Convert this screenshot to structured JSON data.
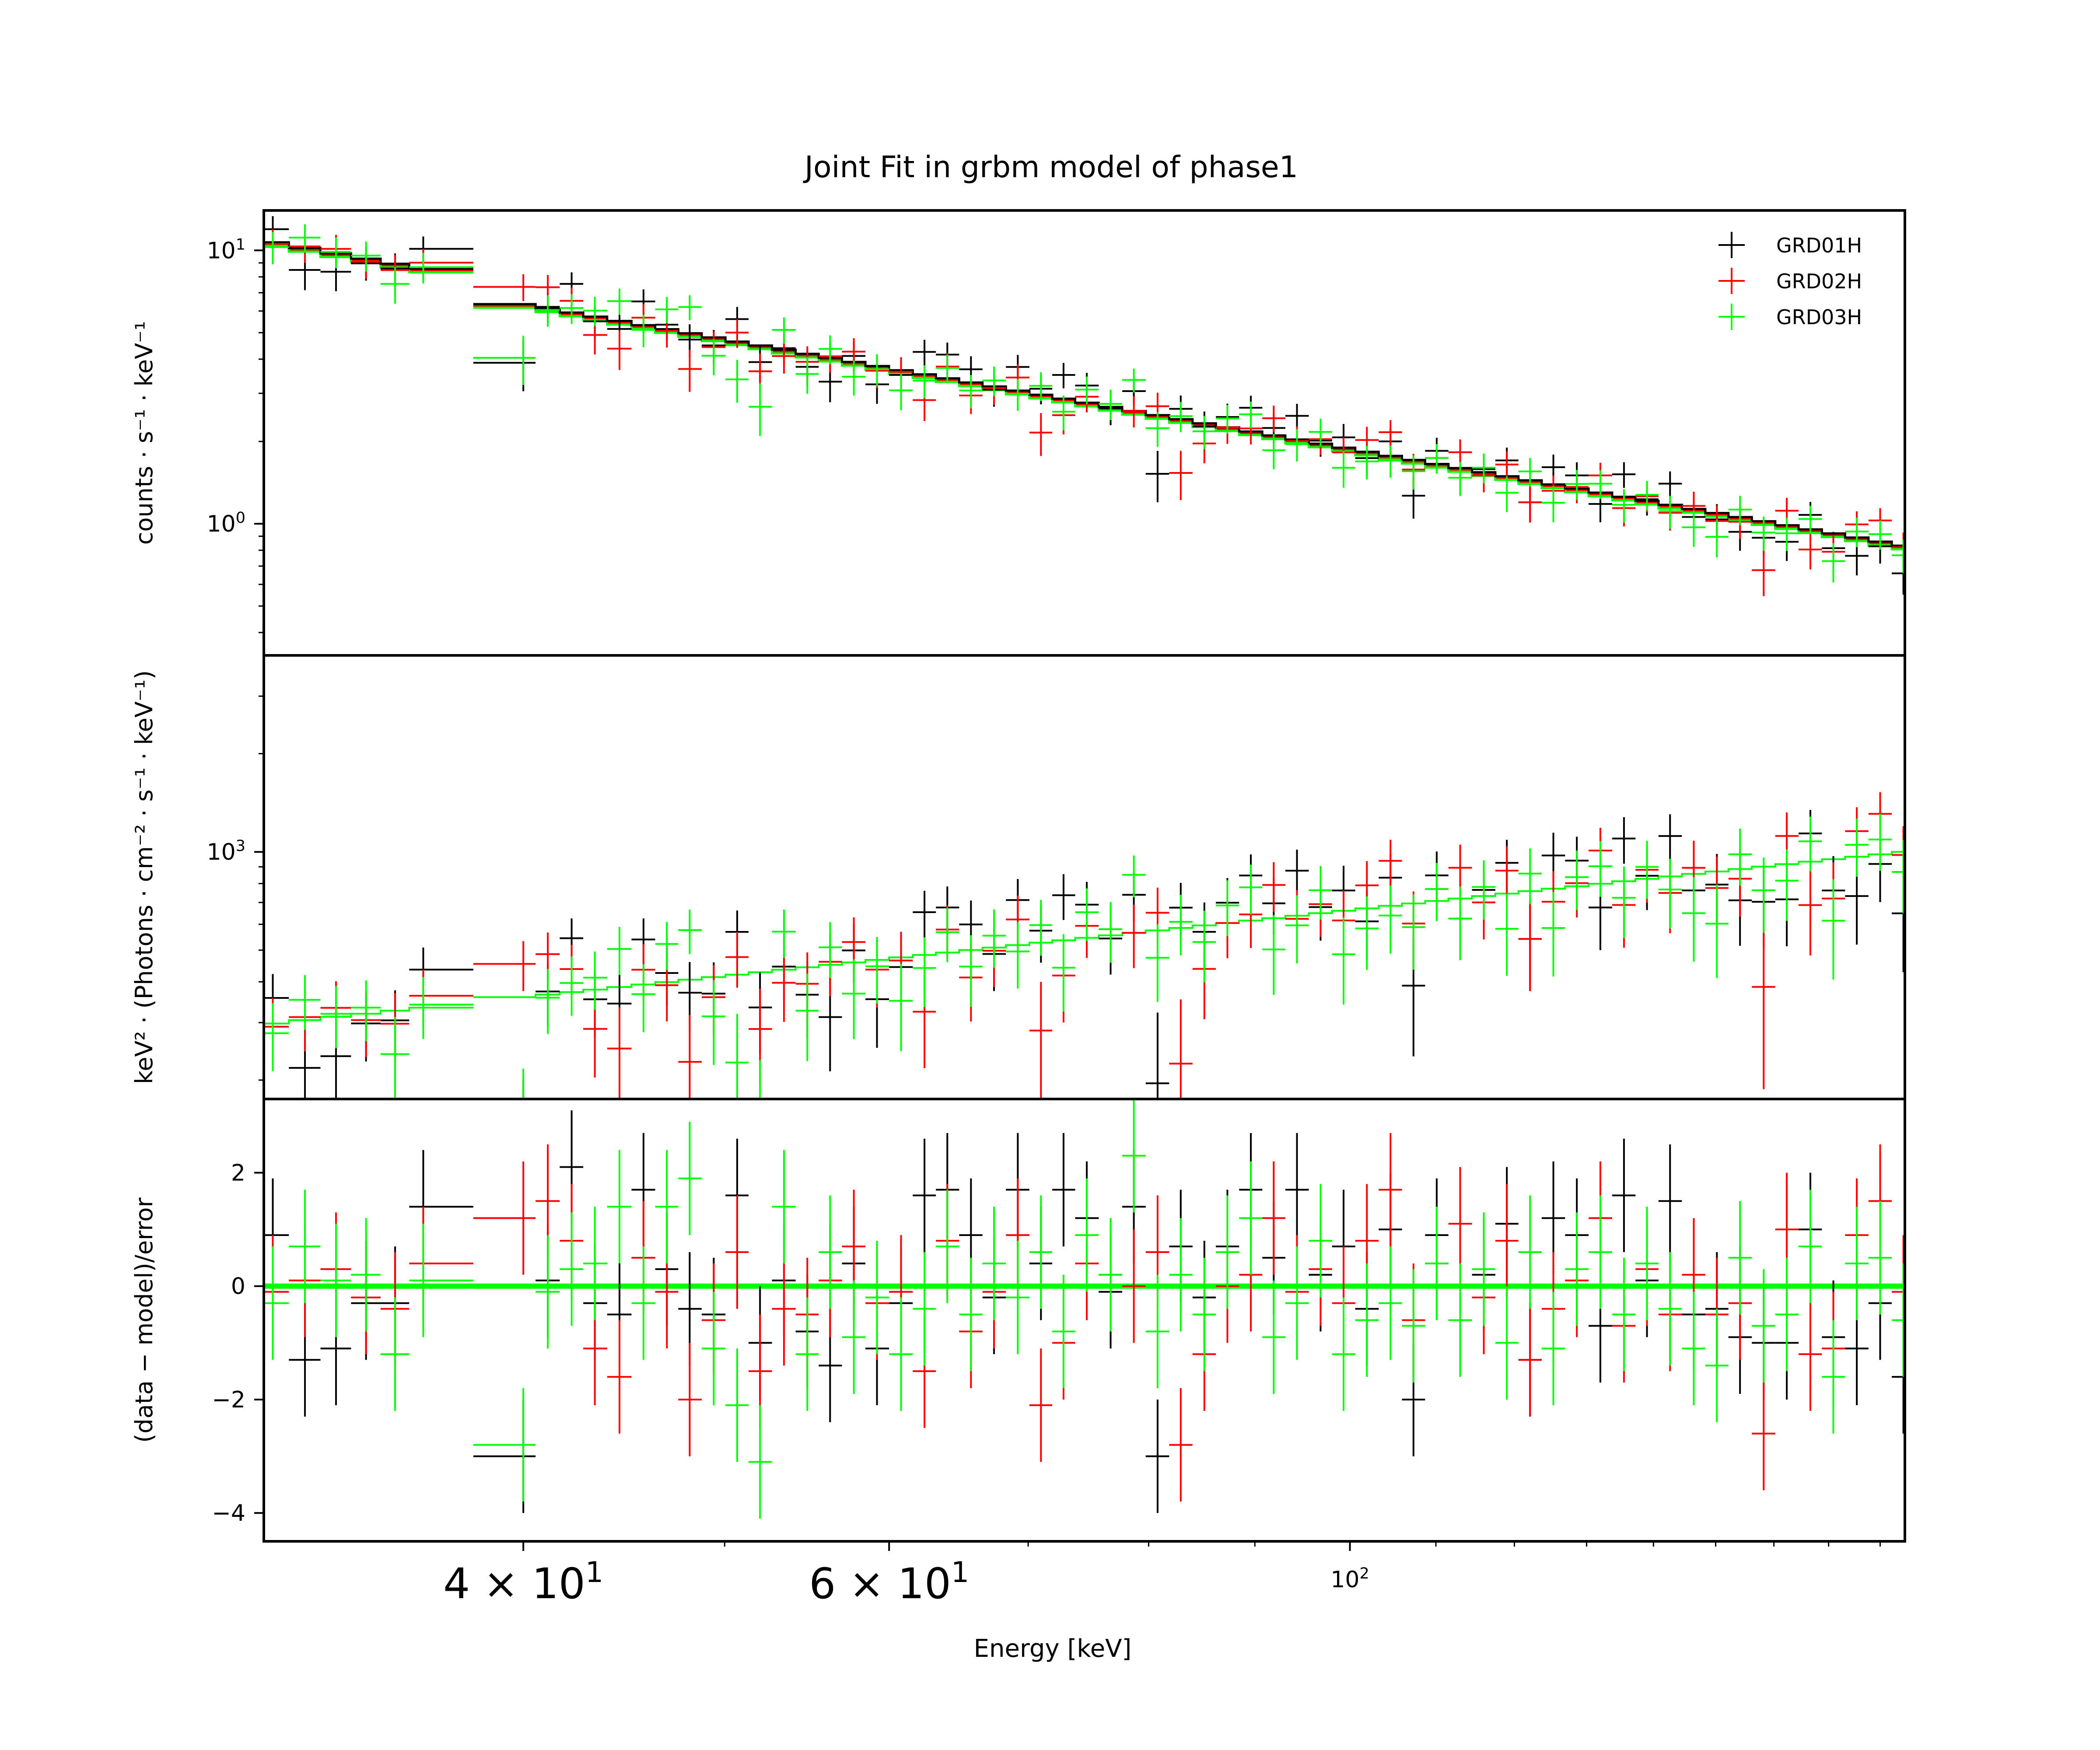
{
  "chart_data": {
    "type": "scatter",
    "title": "Joint Fit  in grbm model of phase1",
    "xlabel": "Energy [keV]",
    "x_scale": "log",
    "xlim": [
      30,
      185
    ],
    "x_tick_labels": [
      {
        "value": 40,
        "label": "4 × 10",
        "sup": "1",
        "size": "large"
      },
      {
        "value": 60,
        "label": "6 × 10",
        "sup": "1",
        "size": "large"
      },
      {
        "value": 100,
        "label": "10",
        "sup": "2",
        "size": "small"
      }
    ],
    "legend": {
      "position": "top-right",
      "entries": [
        {
          "name": "GRD01H",
          "color": "#000000"
        },
        {
          "name": "GRD02H",
          "color": "#ff0000"
        },
        {
          "name": "GRD03H",
          "color": "#00ff00"
        }
      ]
    },
    "energy_bins": [
      30.3,
      31.4,
      32.5,
      33.6,
      34.7,
      35.8,
      40.0,
      41.1,
      42.2,
      43.3,
      44.5,
      45.7,
      46.9,
      48.1,
      49.4,
      50.7,
      52.0,
      53.4,
      54.8,
      56.2,
      57.7,
      59.2,
      60.8,
      62.4,
      64.0,
      65.7,
      67.4,
      69.2,
      71.0,
      72.8,
      74.7,
      76.7,
      78.7,
      80.8,
      82.9,
      85.1,
      87.3,
      89.6,
      91.9,
      94.3,
      96.8,
      99.3,
      101.9,
      104.6,
      107.3,
      110.1,
      113.0,
      116.0,
      119.0,
      122.1,
      125.3,
      128.6,
      132.0,
      135.5,
      139.0,
      142.6,
      146.4,
      150.2,
      154.1,
      158.2,
      162.3,
      166.6,
      170.9,
      175.4,
      180.0,
      184.7
    ],
    "panels": [
      {
        "id": "counts",
        "ylabel": "counts · s⁻¹ · keV⁻¹",
        "y_scale": "log",
        "ylim": [
          0.33,
          14
        ],
        "y_ticks": [
          {
            "value": 1,
            "label": "10",
            "sup": "0"
          },
          {
            "value": 10,
            "label": "10",
            "sup": "1"
          }
        ],
        "model": {
          "norm": 10.7,
          "index": 1.33,
          "steps": [
            30.3,
            35.8,
            40.0,
            184.7
          ],
          "scale": [
            1.0,
            0.86
          ]
        },
        "series": [
          {
            "name": "GRD01H",
            "color": "#000000",
            "residuals": [
              0.9,
              -1.3,
              -1.1,
              -0.3,
              -0.3,
              1.4,
              -3.0,
              0.1,
              2.1,
              -0.3,
              -0.5,
              1.7,
              0.3,
              -0.4,
              -0.5,
              1.6,
              -1.0,
              0.1,
              -0.8,
              -1.4,
              0.4,
              -1.1,
              -0.3,
              1.6,
              1.7,
              0.9,
              -0.2,
              1.7,
              0.4,
              1.7,
              1.2,
              -0.1,
              1.4,
              -3.0,
              0.7,
              -0.2,
              0.7,
              1.7,
              0.5,
              1.7,
              0.2,
              0.7,
              -0.4,
              1.0,
              -2.0,
              0.9,
              -0.6,
              0.2,
              1.1,
              -1.3,
              1.2,
              0.9,
              -0.7,
              1.6,
              0.1,
              1.5,
              -0.5,
              -0.4,
              -0.9,
              -1.0,
              -1.0,
              1.0,
              -0.9,
              -1.1,
              -0.3,
              -1.6
            ]
          },
          {
            "name": "GRD02H",
            "color": "#ff0000",
            "residuals": [
              -0.1,
              0.1,
              0.3,
              -0.2,
              -0.4,
              0.4,
              1.2,
              1.5,
              0.8,
              -1.1,
              -1.6,
              0.5,
              -0.1,
              -2.0,
              -0.6,
              0.6,
              -1.5,
              -0.4,
              -0.5,
              0.1,
              0.7,
              -0.3,
              -0.1,
              -1.5,
              0.8,
              -0.8,
              -0.1,
              0.9,
              -2.1,
              -1.0,
              0.4,
              0.2,
              0.0,
              0.6,
              -2.8,
              -1.2,
              0.0,
              0.2,
              1.2,
              -0.1,
              0.3,
              -0.3,
              0.8,
              1.7,
              -0.6,
              0.4,
              1.1,
              -0.2,
              0.8,
              -1.3,
              -0.4,
              0.1,
              1.2,
              -0.7,
              0.3,
              -0.5,
              0.2,
              -0.5,
              -0.3,
              -2.6,
              1.0,
              -1.2,
              -1.1,
              0.9,
              1.5,
              -0.1
            ]
          },
          {
            "name": "GRD03H",
            "color": "#00ff00",
            "residuals": [
              -0.3,
              0.7,
              0.1,
              0.2,
              -1.2,
              0.1,
              -2.8,
              -0.1,
              0.3,
              0.4,
              1.4,
              -0.3,
              1.4,
              1.9,
              -1.1,
              -2.1,
              -3.1,
              1.4,
              -1.2,
              0.6,
              -0.9,
              -0.2,
              -1.2,
              -0.4,
              0.7,
              -0.5,
              0.4,
              -0.2,
              0.6,
              -0.8,
              0.9,
              0.2,
              2.3,
              -0.8,
              0.2,
              -0.5,
              0.6,
              1.2,
              -0.9,
              -0.3,
              0.8,
              -1.2,
              -0.6,
              -0.3,
              -0.7,
              0.4,
              -0.6,
              0.3,
              -1.0,
              0.6,
              -1.1,
              0.3,
              0.6,
              -0.5,
              0.4,
              -0.4,
              -1.1,
              -1.4,
              0.5,
              -0.7,
              -0.5,
              0.7,
              -1.6,
              0.4,
              0.5,
              -0.6
            ]
          }
        ]
      },
      {
        "id": "eeuf",
        "ylabel": "keV² · (Photons · cm⁻² · s⁻¹ · keV⁻¹)",
        "y_scale": "log",
        "ylim": [
          175,
          4000
        ],
        "y_ticks": [
          {
            "value": 1000,
            "label": "10",
            "sup": "3"
          }
        ],
        "model": {
          "norm": 298,
          "index": -0.67,
          "steps": [
            30.3,
            35.8,
            40.0,
            184.7
          ],
          "scale": [
            1.0,
            1.0
          ]
        }
      },
      {
        "id": "residuals",
        "ylabel": "(data − model)/error",
        "y_scale": "linear",
        "ylim": [
          -4.5,
          3.3
        ],
        "y_ticks": [
          {
            "value": -4,
            "label": "−4"
          },
          {
            "value": -2,
            "label": "−2"
          },
          {
            "value": 0,
            "label": "0"
          },
          {
            "value": 2,
            "label": "2"
          }
        ]
      }
    ]
  }
}
